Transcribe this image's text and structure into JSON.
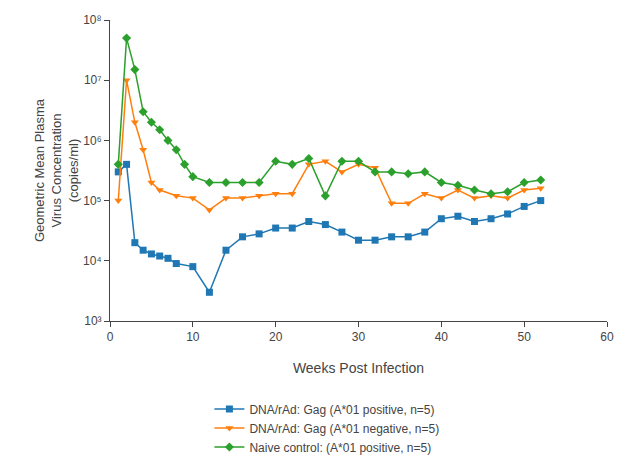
{
  "chart_data": {
    "type": "line",
    "xlabel": "Weeks Post Infection",
    "ylabel": "Geometric Mean Plasma\nVirus Concentration\n(copies/ml)",
    "log": "y",
    "grid": false,
    "legend": "bottom",
    "xlim": [
      0,
      60
    ],
    "xticks": [
      0,
      10,
      20,
      30,
      40,
      50,
      60
    ],
    "ylim": [
      1000.0,
      100000000.0
    ],
    "yticks": [
      {
        "value": 1000.0,
        "label": "10³"
      },
      {
        "value": 10000.0,
        "label": "10⁴"
      },
      {
        "value": 100000.0,
        "label": "10⁵"
      },
      {
        "value": 1000000.0,
        "label": "10⁶"
      },
      {
        "value": 10000000.0,
        "label": "10⁷"
      },
      {
        "value": 100000000.0,
        "label": "10⁸"
      }
    ],
    "series": [
      {
        "name": "DNA/rAd: Gag (A*01 positive, n=5)",
        "marker": "square",
        "x": [
          1,
          2,
          3,
          4,
          5,
          6,
          7,
          8,
          10,
          12,
          14,
          16,
          18,
          20,
          22,
          24,
          26,
          28,
          30,
          32,
          34,
          36,
          38,
          40,
          42,
          44,
          46,
          48,
          50,
          52
        ],
        "values": [
          300000.0,
          400000.0,
          20000.0,
          15000.0,
          13000.0,
          12000.0,
          11000.0,
          9000.0,
          8000.0,
          3000.0,
          15000.0,
          25000.0,
          28000.0,
          35000.0,
          35000.0,
          45000.0,
          40000.0,
          30000.0,
          22000.0,
          22000.0,
          25000.0,
          25000.0,
          30000.0,
          50000.0,
          55000.0,
          45000.0,
          50000.0,
          60000.0,
          80000.0,
          100000.0
        ]
      },
      {
        "name": "DNA/rAd: Gag (A*01 negative, n=5)",
        "marker": "triangle-down",
        "x": [
          1,
          2,
          3,
          4,
          5,
          6,
          8,
          10,
          12,
          14,
          16,
          18,
          20,
          22,
          24,
          26,
          28,
          30,
          32,
          34,
          36,
          38,
          40,
          42,
          44,
          46,
          48,
          50,
          52
        ],
        "values": [
          100000.0,
          10000000.0,
          2000000.0,
          700000.0,
          200000.0,
          150000.0,
          120000.0,
          110000.0,
          70000.0,
          110000.0,
          110000.0,
          120000.0,
          130000.0,
          130000.0,
          400000.0,
          450000.0,
          300000.0,
          400000.0,
          350000.0,
          90000.0,
          90000.0,
          130000.0,
          110000.0,
          150000.0,
          110000.0,
          120000.0,
          110000.0,
          150000.0,
          160000.0
        ]
      },
      {
        "name": "Naive control: (A*01 positive, n=5)",
        "marker": "diamond",
        "x": [
          1,
          2,
          3,
          4,
          5,
          6,
          7,
          8,
          9,
          10,
          12,
          14,
          16,
          18,
          20,
          22,
          24,
          26,
          28,
          30,
          32,
          34,
          36,
          38,
          40,
          42,
          44,
          46,
          48,
          50,
          52
        ],
        "values": [
          400000.0,
          50000000.0,
          15000000.0,
          3000000.0,
          2000000.0,
          1500000.0,
          1000000.0,
          700000.0,
          400000.0,
          250000.0,
          200000.0,
          200000.0,
          200000.0,
          200000.0,
          450000.0,
          400000.0,
          500000.0,
          120000.0,
          450000.0,
          450000.0,
          300000.0,
          300000.0,
          280000.0,
          300000.0,
          200000.0,
          180000.0,
          150000.0,
          130000.0,
          140000.0,
          200000.0,
          220000.0
        ]
      }
    ]
  }
}
